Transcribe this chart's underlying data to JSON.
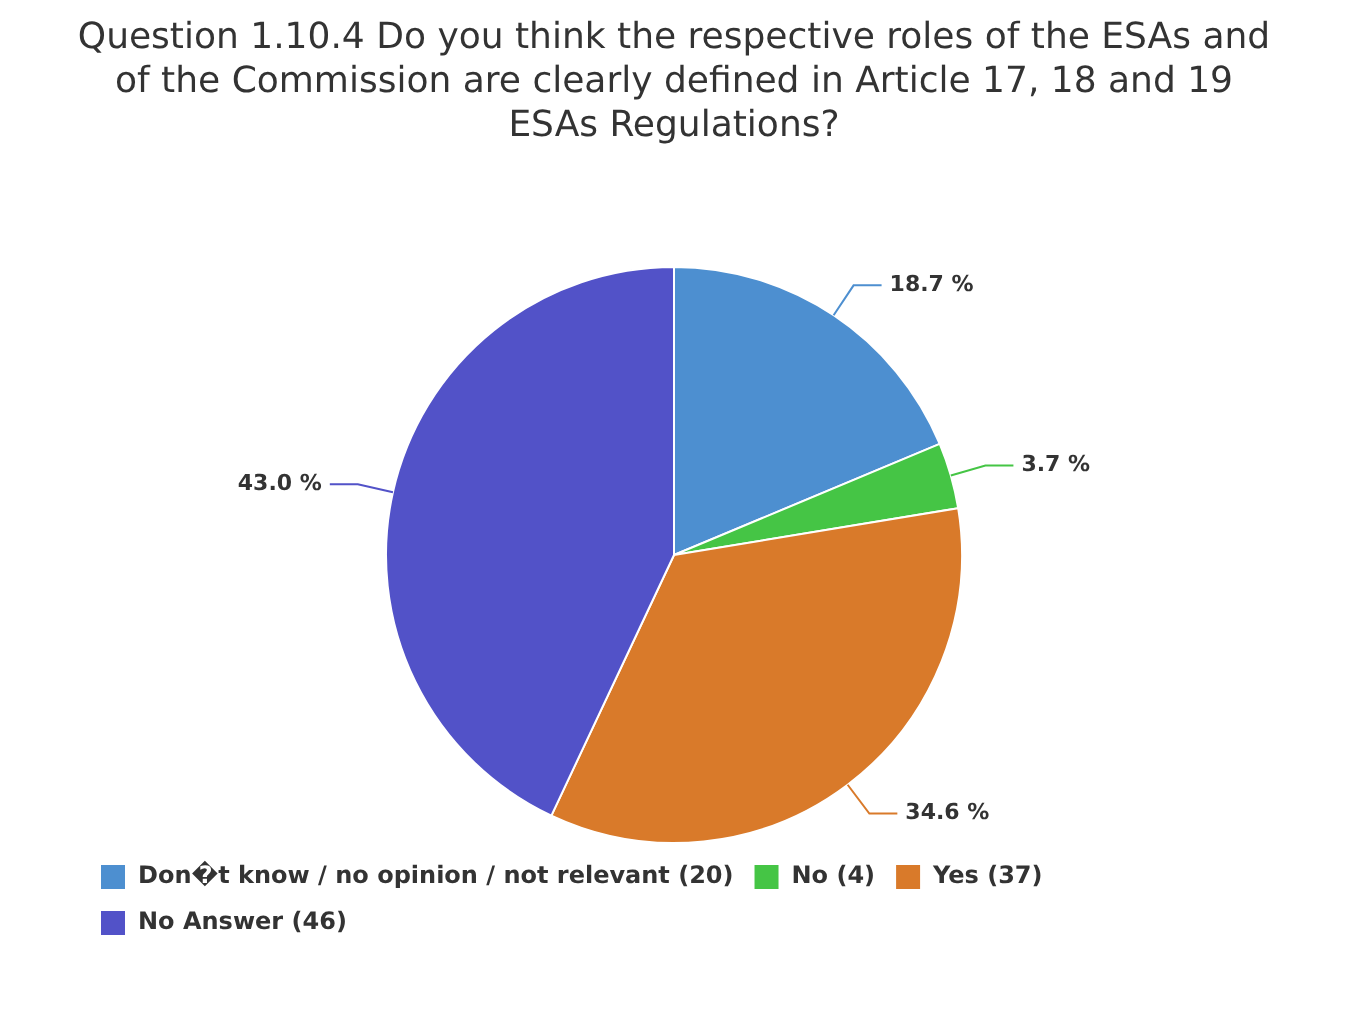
{
  "chart_data": {
    "type": "pie",
    "title": "Question 1.10.4 Do you think the respective roles of the ESAs and of the Commission are clearly defined in Article 17, 18 and 19 ESAs Regulations?",
    "categories": [
      "Don�t know / no opinion / not relevant (20)",
      "No (4)",
      "Yes (37)",
      "No Answer (46)"
    ],
    "values": [
      18.7,
      3.7,
      34.6,
      43.0
    ],
    "value_labels": [
      "18.7 %",
      "3.7 %",
      "34.6 %",
      "43.0 %"
    ],
    "colors": [
      "#4d8fd0",
      "#45c545",
      "#d97a2a",
      "#5252c8"
    ],
    "legend": "bottom"
  }
}
